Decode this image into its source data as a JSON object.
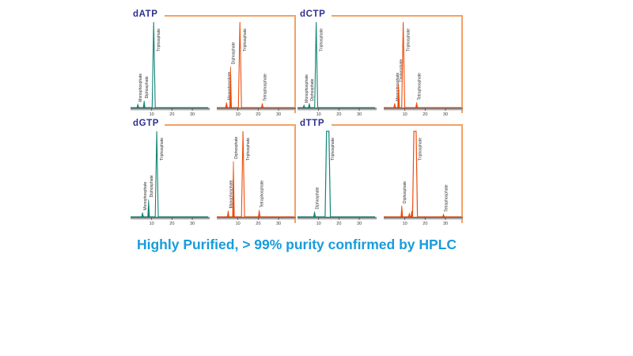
{
  "caption": "Highly Purified, > 99% purity confirmed by HPLC",
  "colors": {
    "teal": "#118577",
    "orange": "#EE4D0C",
    "panel_border": "#F4A164",
    "title_navy": "#2E2F8F",
    "caption_blue": "#189CDB",
    "axis": "#4A4A4A",
    "axis_shadow": "#ADADAD",
    "peak_label_text": "#2A2A2A",
    "tick_label_text": "#3A3A3A"
  },
  "chart_data": [
    {
      "id": "dATP",
      "title": "dATP",
      "type": "line",
      "x_range": [
        0,
        37
      ],
      "x_ticks": [
        10,
        20,
        30
      ],
      "traces": [
        {
          "color": "teal",
          "peaks": [
            {
              "label": "Monophosphate",
              "x": 3.2,
              "h": 0.04
            },
            {
              "label": "Diphosphate",
              "x": 6.3,
              "h": 0.08
            },
            {
              "label": "Triphosphate",
              "x": 11,
              "h": 1.0,
              "w": 1.5
            }
          ]
        },
        {
          "color": "orange",
          "peaks": [
            {
              "label": "Monophosphate",
              "x": 4.4,
              "h": 0.06
            },
            {
              "label": "Diphosphate",
              "x": 6.4,
              "h": 0.48
            },
            {
              "label": "Triphosphate",
              "x": 11,
              "h": 1.0,
              "w": 1.5
            },
            {
              "label": "Tetraphosphate",
              "x": 22,
              "h": 0.05
            }
          ]
        }
      ]
    },
    {
      "id": "dCTP",
      "title": "dCTP",
      "type": "line",
      "x_range": [
        0,
        37
      ],
      "x_ticks": [
        10,
        20,
        30
      ],
      "traces": [
        {
          "color": "teal",
          "peaks": [
            {
              "label": "Monophosphate",
              "x": 2.8,
              "h": 0.03
            },
            {
              "label": "Diphosphate",
              "x": 5.4,
              "h": 0.05
            },
            {
              "label": "Triphosphate",
              "x": 8.8,
              "h": 1.0,
              "w": 1.5
            }
          ]
        },
        {
          "color": "orange",
          "peaks": [
            {
              "label": "Monophosphate",
              "x": 5.0,
              "h": 0.05
            },
            {
              "label": "Diphosphate",
              "x": 6.9,
              "h": 0.28
            },
            {
              "label": "Triphosphate",
              "x": 9.2,
              "h": 1.0,
              "w": 1.5
            },
            {
              "label": "Tetraphosphate",
              "x": 15.8,
              "h": 0.06
            }
          ]
        }
      ]
    },
    {
      "id": "dGTP",
      "title": "dGTP",
      "type": "line",
      "x_range": [
        0,
        37
      ],
      "x_ticks": [
        10,
        20,
        30
      ],
      "traces": [
        {
          "color": "teal",
          "peaks": [
            {
              "label": "Monophosphate",
              "x": 5.5,
              "h": 0.05
            },
            {
              "label": "Diphosphate",
              "x": 8.5,
              "h": 0.2
            },
            {
              "label": "Triphosphate",
              "x": 12.5,
              "h": 1.0,
              "w": 1.5
            }
          ]
        },
        {
          "color": "orange",
          "peaks": [
            {
              "label": "Monophosphate",
              "x": 5.2,
              "h": 0.07
            },
            {
              "label": "Diphosphate",
              "x": 7.8,
              "h": 0.65
            },
            {
              "label": "Triphosphate",
              "x": 12.5,
              "h": 1.0,
              "w": 1.5
            },
            {
              "label": "Tetraphosphate",
              "x": 20.5,
              "h": 0.08
            }
          ]
        }
      ]
    },
    {
      "id": "dTTP",
      "title": "dTTP",
      "type": "line",
      "x_range": [
        0,
        37
      ],
      "x_ticks": [
        10,
        20,
        30
      ],
      "traces": [
        {
          "color": "teal",
          "peaks": [
            {
              "label": "Diphosphate",
              "x": 8.0,
              "h": 0.06
            },
            {
              "label": "Triphosphate",
              "x": 14.5,
              "h": 1.0,
              "w": 2.6,
              "flat": true
            }
          ]
        },
        {
          "color": "orange",
          "peaks": [
            {
              "label": "Diphosphate",
              "x": 8.5,
              "h": 0.13
            },
            {
              "label": "",
              "x": 12.2,
              "h": 0.04
            },
            {
              "label": "",
              "x": 13.4,
              "h": 0.07
            },
            {
              "label": "Triphosphate",
              "x": 15.0,
              "h": 1.0,
              "w": 2.4,
              "flat": true
            },
            {
              "label": "Tetraphosphate",
              "x": 29.0,
              "h": 0.03
            }
          ]
        }
      ]
    }
  ]
}
